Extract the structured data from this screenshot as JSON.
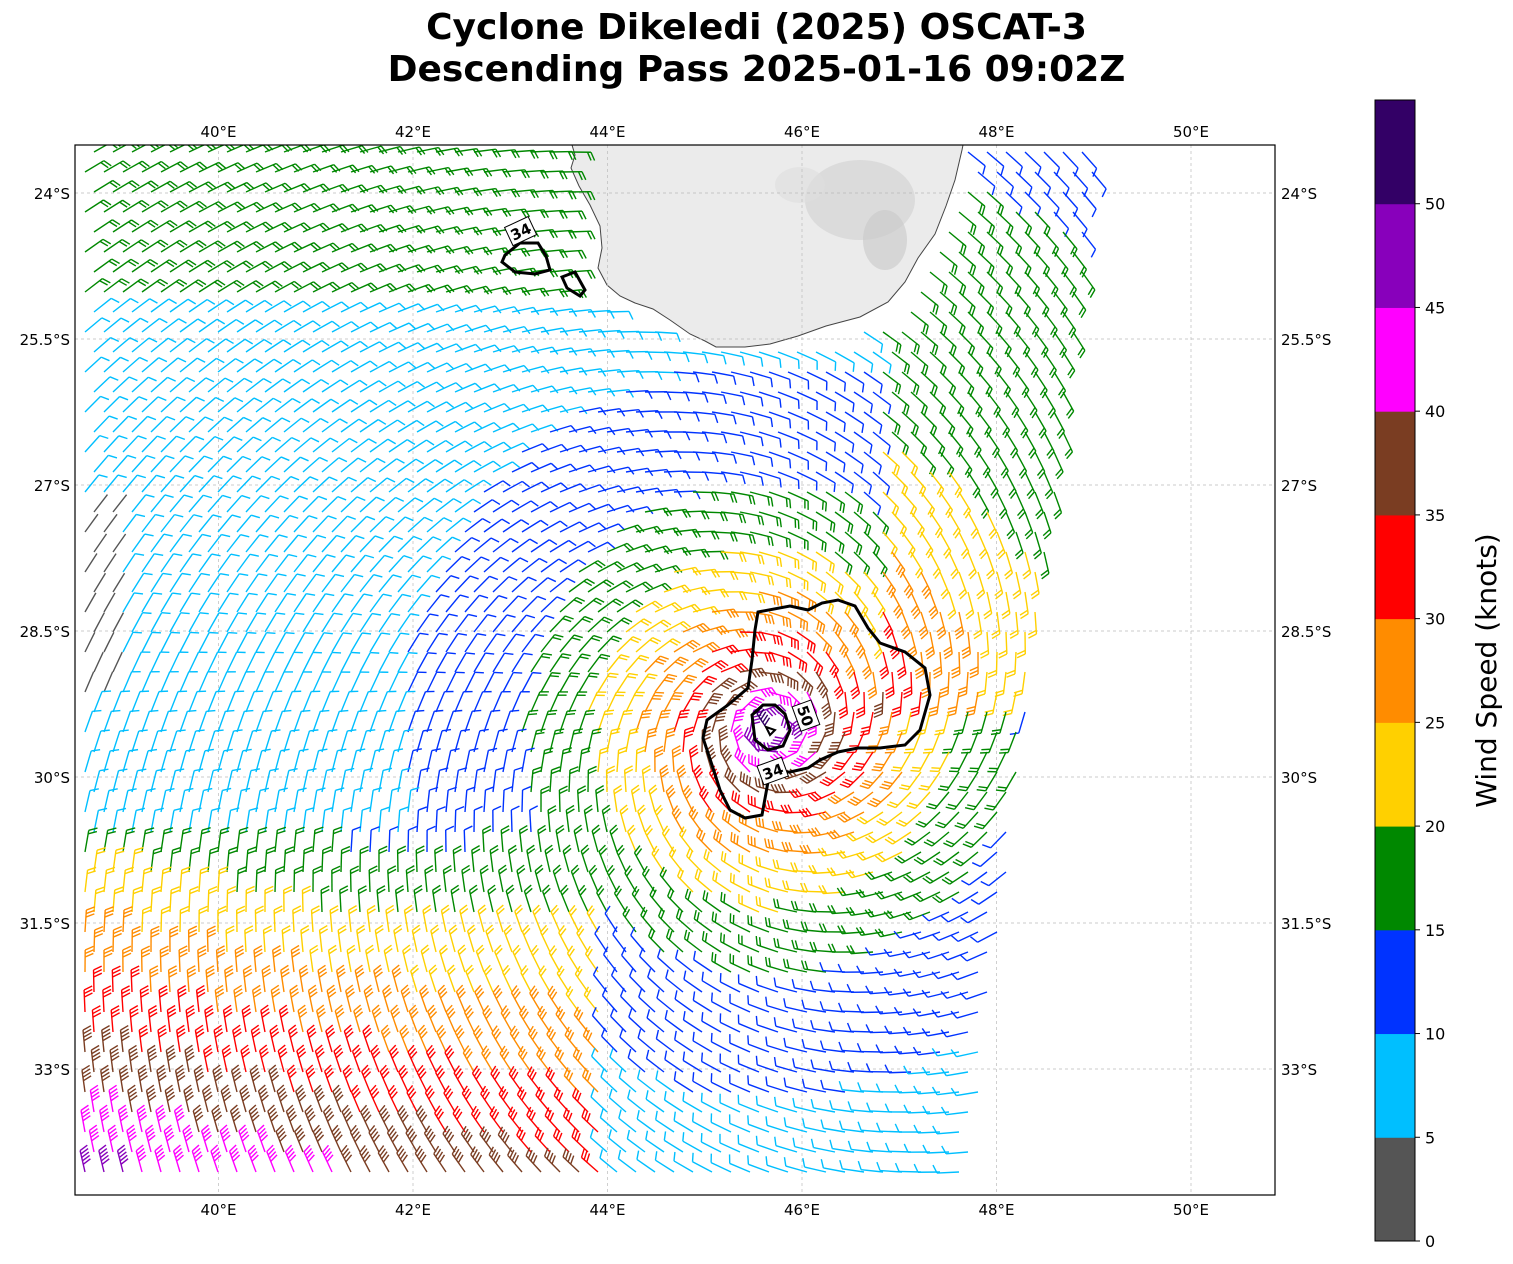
{
  "title": {
    "line1": "Cyclone Dikeledi (2025) OSCAT-3",
    "line2": "Descending Pass 2025-01-16 09:02Z"
  },
  "map": {
    "lon_ticks": [
      "40°E",
      "42°E",
      "44°E",
      "46°E",
      "48°E",
      "50°E"
    ],
    "lat_ticks": [
      "24°S",
      "25.5°S",
      "27°S",
      "28.5°S",
      "30°S",
      "31.5°S",
      "33°S"
    ],
    "contour_labels": [
      "34",
      "50",
      "34"
    ]
  },
  "colorbar": {
    "label": "Wind Speed (knots)",
    "ticks": [
      "0",
      "5",
      "10",
      "15",
      "20",
      "25",
      "30",
      "35",
      "40",
      "45",
      "50"
    ],
    "colors": [
      "#555555",
      "#00bfff",
      "#0033ff",
      "#008800",
      "#ffd000",
      "#ff8c00",
      "#ff0000",
      "#7a3d22",
      "#ff00ff",
      "#8800bb",
      "#330066"
    ]
  },
  "colors": {
    "land": "#eeeeee",
    "gridline": "#bbbbbb",
    "contour": "#000000"
  }
}
